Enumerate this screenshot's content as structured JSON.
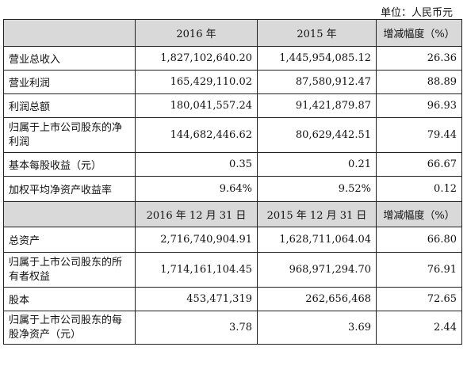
{
  "unit_label": "单位：人民币元",
  "section1": {
    "headers": [
      "",
      "2016 年",
      "2015 年",
      "增减幅度（%）"
    ],
    "rows": [
      {
        "label": "营业总收入",
        "v2016": "1,827,102,640.20",
        "v2015": "1,445,954,085.12",
        "change": "26.36"
      },
      {
        "label": "营业利润",
        "v2016": "165,429,110.02",
        "v2015": "87,580,912.47",
        "change": "88.89"
      },
      {
        "label": "利润总额",
        "v2016": "180,041,557.24",
        "v2015": "91,421,879.87",
        "change": "96.93"
      },
      {
        "label": "归属于上市公司股东的净利润",
        "v2016": "144,682,446.62",
        "v2015": "80,629,442.51",
        "change": "79.44"
      },
      {
        "label": "基本每股收益（元）",
        "v2016": "0.35",
        "v2015": "0.21",
        "change": "66.67"
      },
      {
        "label": "加权平均净资产收益率",
        "v2016": "9.64%",
        "v2015": "9.52%",
        "change": "0.12"
      }
    ]
  },
  "section2": {
    "headers": [
      "",
      "2016 年 12 月 31 日",
      "2015 年 12 月 31 日",
      "增减幅度（%）"
    ],
    "rows": [
      {
        "label": "总资产",
        "v2016": "2,716,740,904.91",
        "v2015": "1,628,711,064.04",
        "change": "66.80"
      },
      {
        "label": "归属于上市公司股东的所有者权益",
        "v2016": "1,714,161,104.45",
        "v2015": "968,971,294.70",
        "change": "76.91"
      },
      {
        "label": "股本",
        "v2016": "453,471,319",
        "v2015": "262,656,468",
        "change": "72.65"
      },
      {
        "label": "归属于上市公司股东的每股净资产（元）",
        "v2016": "3.78",
        "v2015": "3.69",
        "change": "2.44"
      }
    ]
  }
}
